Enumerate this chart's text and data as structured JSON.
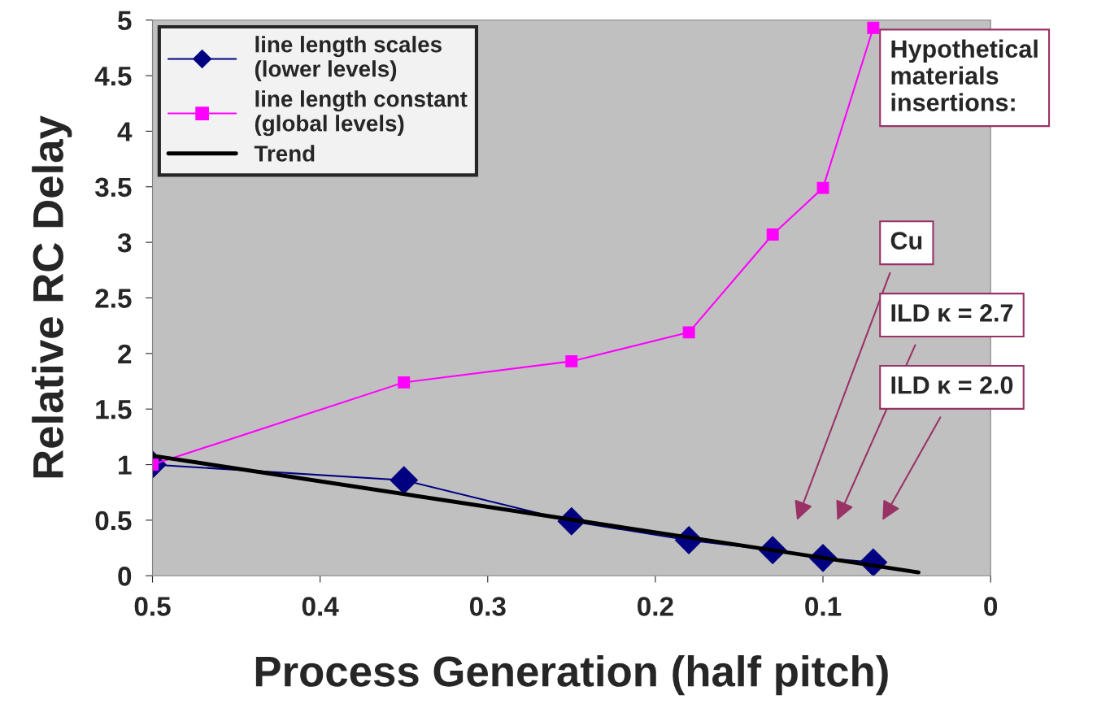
{
  "chart_data": {
    "type": "line",
    "xlabel": "Process Generation (half pitch)",
    "ylabel": "Relative RC Delay",
    "x": [
      0.5,
      0.35,
      0.25,
      0.18,
      0.13,
      0.1,
      0.07
    ],
    "series": [
      {
        "name": "line length scales\n(lower levels)",
        "color": "#000080",
        "marker": "diamond",
        "values": [
          1.0,
          0.86,
          0.49,
          0.32,
          0.23,
          0.16,
          0.12
        ]
      },
      {
        "name": "line length constant\n(global levels)",
        "color": "#ff00ff",
        "marker": "square",
        "values": [
          1.0,
          1.74,
          1.93,
          2.19,
          3.07,
          3.49,
          4.93
        ]
      },
      {
        "name": "Trend",
        "color": "#000000",
        "marker": "none",
        "x": [
          0.5,
          0.043
        ],
        "values": [
          1.08,
          0.03
        ]
      }
    ],
    "xlim": [
      0.5,
      0
    ],
    "xticks": [
      0.5,
      0.4,
      0.3,
      0.2,
      0.1,
      0
    ],
    "ylim": [
      0,
      5
    ],
    "yticks": [
      0,
      0.5,
      1,
      1.5,
      2,
      2.5,
      3,
      3.5,
      4,
      4.5,
      5
    ],
    "grid": false,
    "legend": "top left",
    "annotations": [
      "Hypothetical\nmaterials\ninsertions:",
      "Cu",
      "ILD κ = 2.7",
      "ILD κ = 2.0"
    ]
  }
}
